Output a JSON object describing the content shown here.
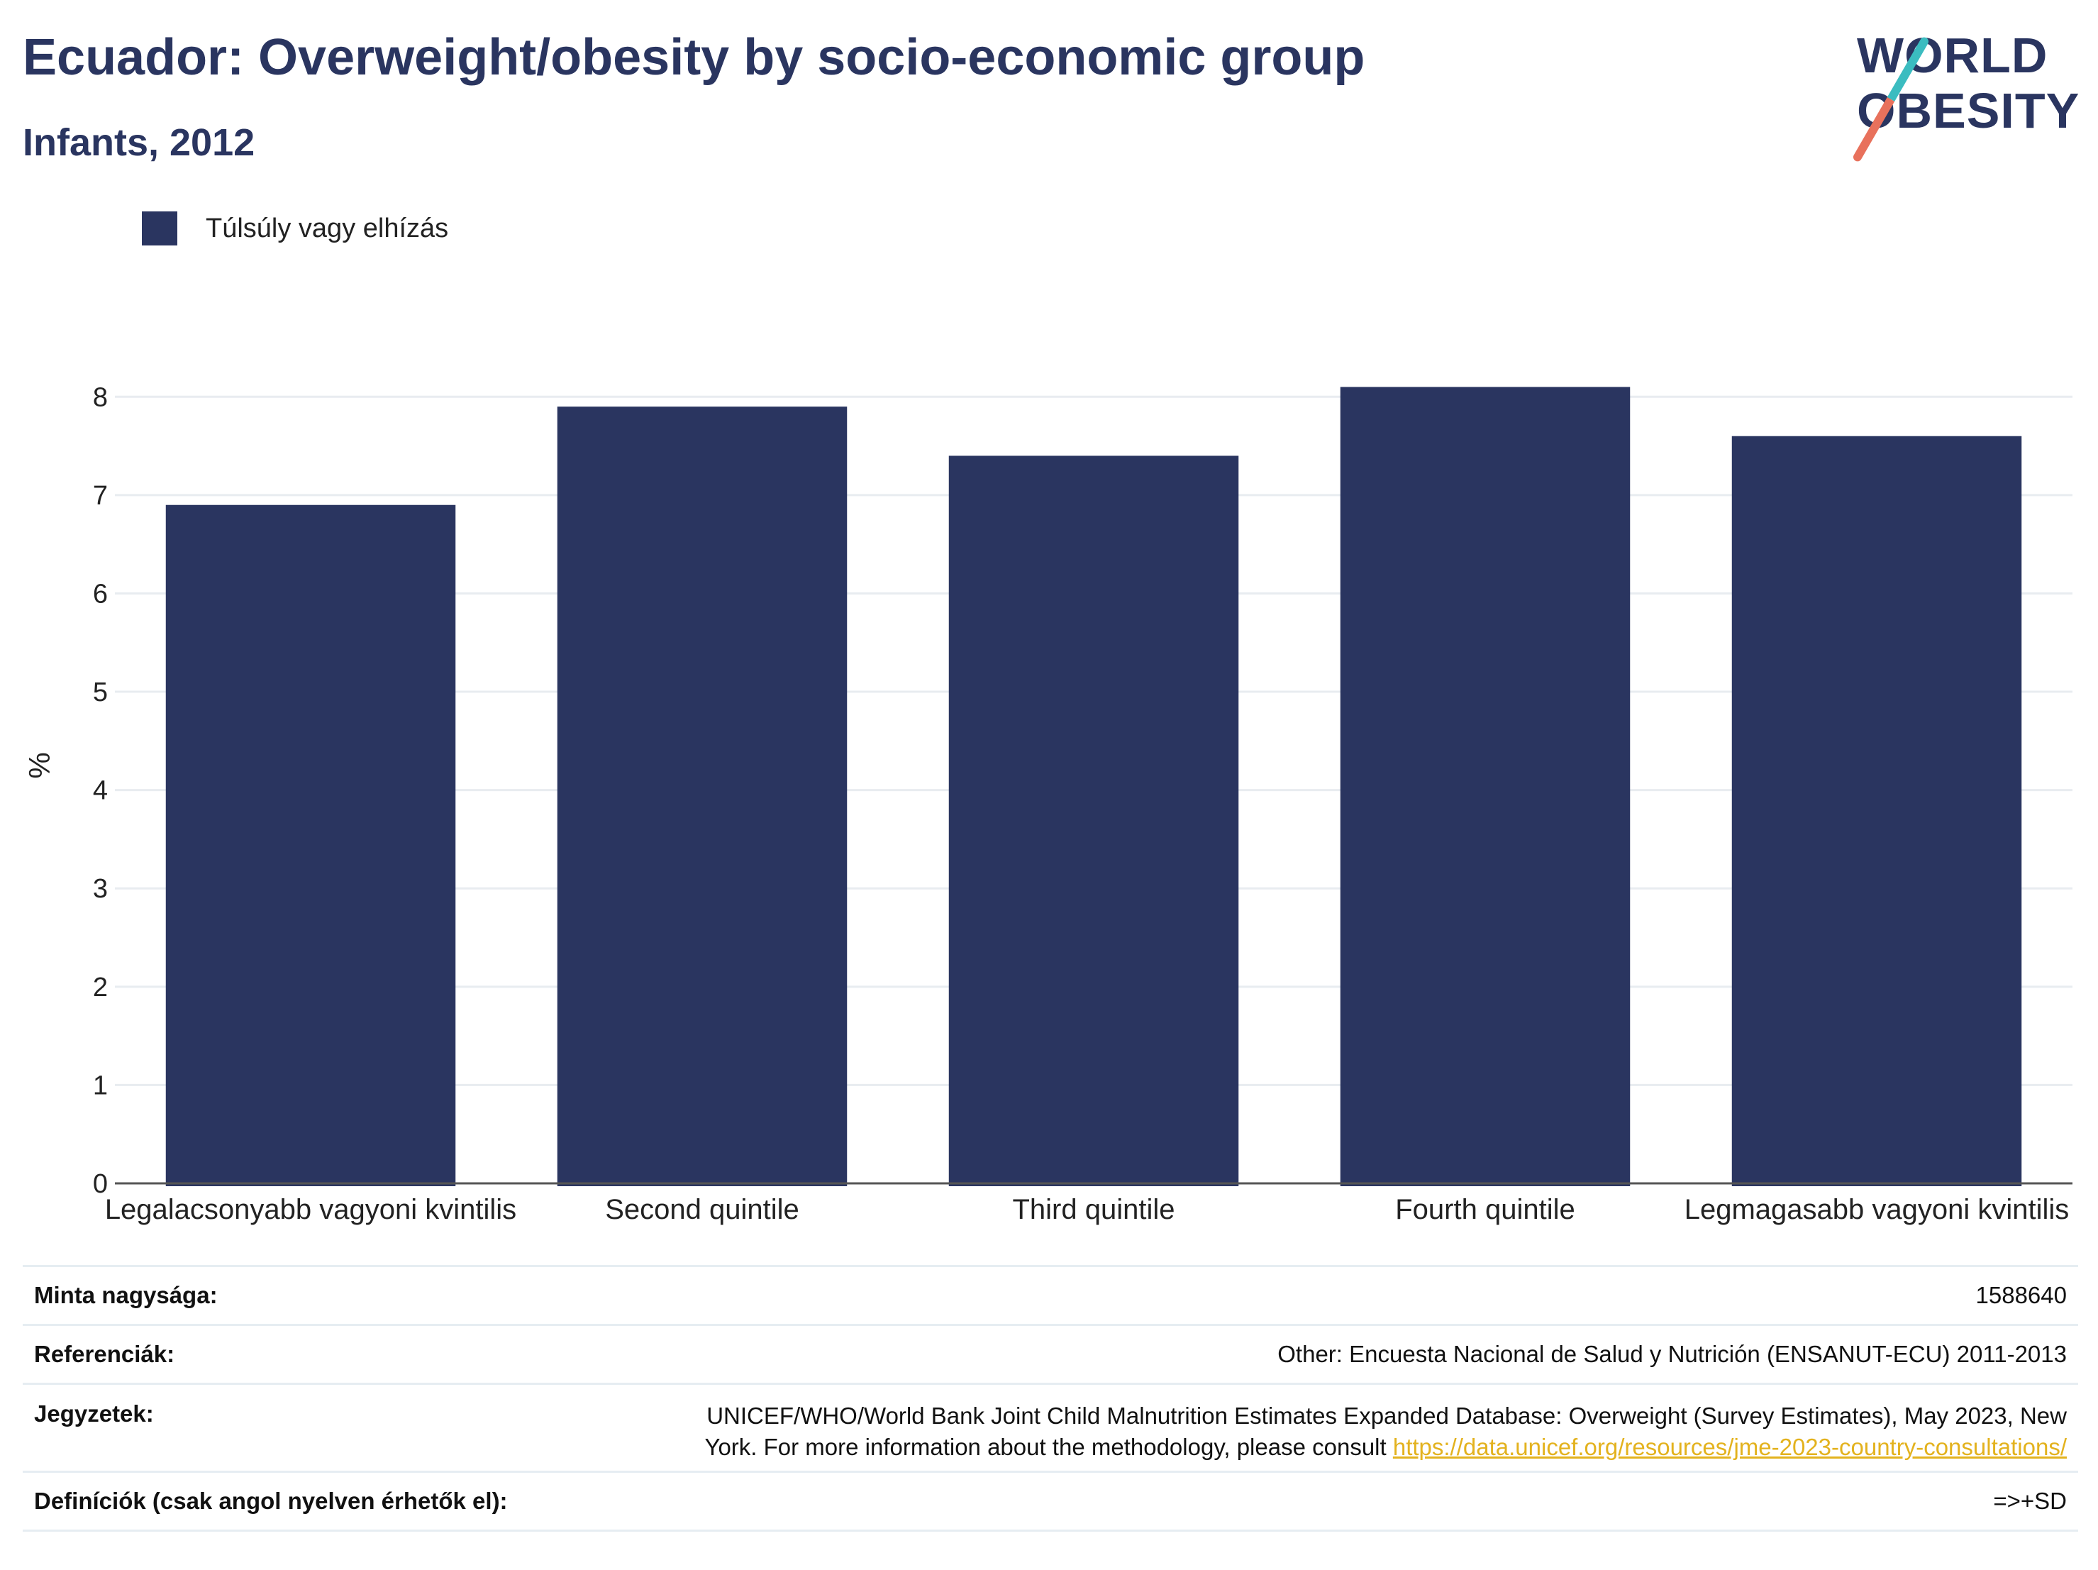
{
  "header": {
    "title": "Ecuador: Overweight/obesity by socio-economic group",
    "subtitle": "Infants, 2012"
  },
  "logo": {
    "line1": "WORLD",
    "line2": "OBESITY"
  },
  "colors": {
    "bar": "#2a3560",
    "grid": "#e8ecf0",
    "axis": "#555555",
    "link": "#e3b21e"
  },
  "chart_data": {
    "type": "bar",
    "categories": [
      "Legalacsonyabb vagyoni kvintilis",
      "Second quintile",
      "Third quintile",
      "Fourth quintile",
      "Legmagasabb vagyoni kvintilis"
    ],
    "series": [
      {
        "name": "Túlsúly vagy elhízás",
        "values": [
          6.9,
          7.9,
          7.4,
          8.1,
          7.6
        ]
      }
    ],
    "ylabel": "%",
    "ylim": [
      0,
      8.5
    ],
    "yticks": [
      0,
      1,
      2,
      3,
      4,
      5,
      6,
      7,
      8
    ],
    "grid": true,
    "legend": "top-left"
  },
  "info": {
    "rows": [
      {
        "key": "Minta nagysága:",
        "value": "1588640"
      },
      {
        "key": "Referenciák:",
        "value": "Other: Encuesta Nacional de Salud y Nutrición (ENSANUT-ECU) 2011-2013"
      },
      {
        "key": "Jegyzetek:",
        "value_line1": "UNICEF/WHO/World Bank Joint Child Malnutrition Estimates Expanded Database: Overweight (Survey Estimates), May 2023, New",
        "value_line2": "York. For more information about the methodology, please consult ",
        "link": "https://data.unicef.org/resources/jme-2023-country-consultations/"
      },
      {
        "key": "Definíciók (csak angol nyelven érhetők el):",
        "value": "=>+SD"
      }
    ]
  }
}
